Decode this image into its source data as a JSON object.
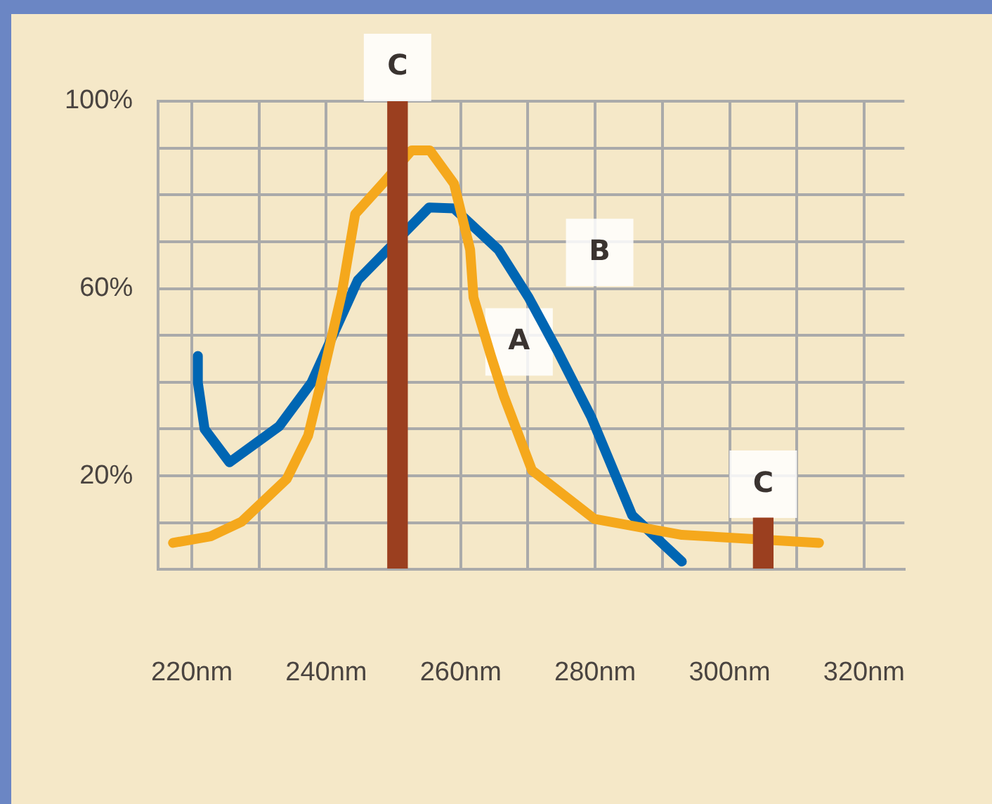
{
  "chart_data": {
    "type": "line",
    "xlim": [
      215,
      326
    ],
    "ylim": [
      0,
      100
    ],
    "xticks": [
      {
        "value": 230,
        "label": null
      },
      {
        "value": 220,
        "label": "220nm"
      },
      {
        "value": 240,
        "label": "240nm"
      },
      {
        "value": 260,
        "label": "260nm"
      },
      {
        "value": 270,
        "label": null
      },
      {
        "value": 280,
        "label": "280nm"
      },
      {
        "value": 290,
        "label": null
      },
      {
        "value": 300,
        "label": "300nm"
      },
      {
        "value": 310,
        "label": null
      },
      {
        "value": 320,
        "label": "320nm"
      }
    ],
    "yticks": [
      {
        "value": 0,
        "label": null
      },
      {
        "value": 10,
        "label": null
      },
      {
        "value": 20,
        "label": "20%"
      },
      {
        "value": 30,
        "label": null
      },
      {
        "value": 40,
        "label": null
      },
      {
        "value": 50,
        "label": null
      },
      {
        "value": 60,
        "label": "60%"
      },
      {
        "value": 70,
        "label": null
      },
      {
        "value": 80,
        "label": null
      },
      {
        "value": 90,
        "label": null
      },
      {
        "value": 100,
        "label": "100%"
      }
    ],
    "grid": true,
    "legend": false,
    "marker": "none",
    "line_style": "solid",
    "series": [
      {
        "name": "A",
        "color": "#f5a81c",
        "x": [
          217.2,
          222.8,
          227.4,
          234.1,
          237.3,
          239.7,
          242.3,
          244.3,
          248.4,
          252.7,
          255.4,
          259.0,
          261.4,
          261.9,
          264.5,
          266.4,
          270.6,
          279.9,
          292.9,
          313.3
        ],
        "values": [
          5.7,
          7.1,
          10.2,
          19.3,
          28.6,
          42.8,
          58.9,
          75.9,
          82.4,
          89.5,
          89.5,
          82.4,
          68.3,
          58.1,
          45.6,
          37.1,
          21.2,
          10.8,
          7.4,
          5.7
        ]
      },
      {
        "name": "B",
        "color": "#0066b3",
        "x": [
          220.9,
          220.9,
          221.9,
          225.6,
          233.0,
          237.8,
          244.7,
          255.3,
          259.0,
          265.6,
          270.1,
          274.4,
          279.4,
          285.5,
          292.9
        ],
        "values": [
          45.6,
          39.9,
          30.0,
          22.9,
          30.6,
          39.9,
          61.8,
          77.3,
          77.1,
          68.3,
          58.1,
          46.7,
          32.6,
          11.6,
          1.7
        ]
      },
      {
        "name": "C",
        "type": "bar",
        "color": "#9b3f1f",
        "x": [
          250.6,
          305.0
        ],
        "values": [
          100,
          11
        ]
      }
    ]
  }
}
